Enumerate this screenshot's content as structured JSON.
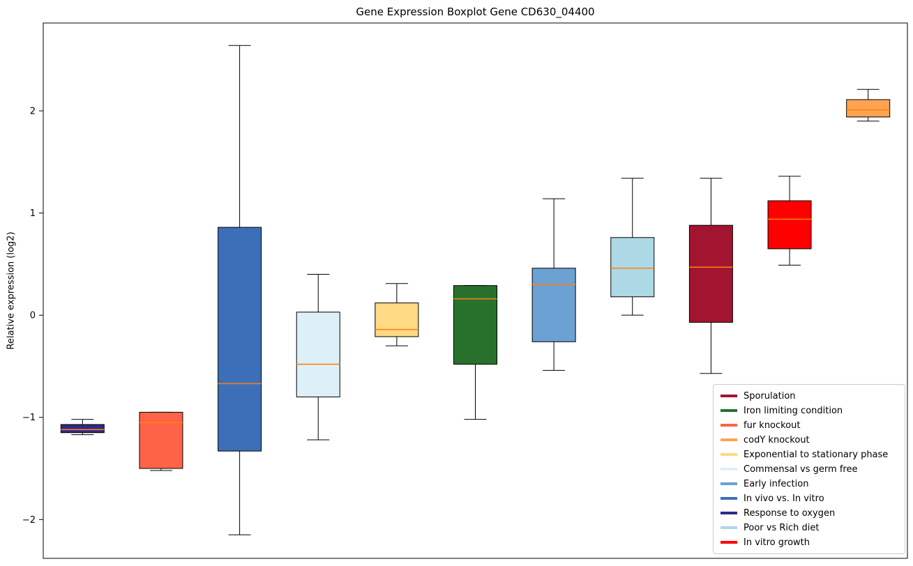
{
  "chart_data": {
    "type": "boxplot",
    "title": "Gene Expression Boxplot Gene CD630_04400",
    "ylabel": "Relative expression (log2)",
    "ylim": [
      -2.38,
      2.86
    ],
    "yticks": [
      -2,
      -1,
      0,
      1,
      2
    ],
    "grid": false,
    "median_color": "#ff7f0e",
    "box_edge_color": "#000000",
    "legend_position": "lower right",
    "boxes": [
      {
        "label": "Response to oxygen",
        "color": "#2d2b85",
        "whisker_low": -1.17,
        "q1": -1.15,
        "median": -1.12,
        "q3": -1.07,
        "whisker_high": -1.02
      },
      {
        "label": "fur knockout",
        "color": "#ff6347",
        "whisker_low": -1.52,
        "q1": -1.5,
        "median": -1.05,
        "q3": -0.95,
        "whisker_high": -0.95
      },
      {
        "label": "In vivo vs. In vitro",
        "color": "#3d6fb8",
        "whisker_low": -2.15,
        "q1": -1.33,
        "median": -0.67,
        "q3": 0.86,
        "whisker_high": 2.64
      },
      {
        "label": "Commensal vs germ free",
        "color": "#ddf0f8",
        "whisker_low": -1.22,
        "q1": -0.8,
        "median": -0.48,
        "q3": 0.03,
        "whisker_high": 0.4
      },
      {
        "label": "Exponential to stationary phase",
        "color": "#ffd983",
        "whisker_low": -0.3,
        "q1": -0.21,
        "median": -0.14,
        "q3": 0.12,
        "whisker_high": 0.31
      },
      {
        "label": "Iron limiting condition",
        "color": "#27712c",
        "whisker_low": -1.02,
        "q1": -0.48,
        "median": 0.16,
        "q3": 0.29,
        "whisker_high": 0.29
      },
      {
        "label": "Early infection",
        "color": "#6ba1d3",
        "whisker_low": -0.54,
        "q1": -0.26,
        "median": 0.3,
        "q3": 0.46,
        "whisker_high": 1.14
      },
      {
        "label": "Poor vs Rich diet",
        "color": "#add8e6",
        "whisker_low": 0.0,
        "q1": 0.18,
        "median": 0.46,
        "q3": 0.76,
        "whisker_high": 1.34
      },
      {
        "label": "Sporulation",
        "color": "#a2142f",
        "whisker_low": -0.57,
        "q1": -0.07,
        "median": 0.47,
        "q3": 0.88,
        "whisker_high": 1.34
      },
      {
        "label": "In vitro growth",
        "color": "#ff0000",
        "whisker_low": 0.49,
        "q1": 0.65,
        "median": 0.94,
        "q3": 1.12,
        "whisker_high": 1.36
      },
      {
        "label": "codY knockout",
        "color": "#ffa351",
        "whisker_low": 1.9,
        "q1": 1.94,
        "median": 2.01,
        "q3": 2.11,
        "whisker_high": 2.21
      }
    ],
    "legend": [
      {
        "label": "Sporulation",
        "color": "#a2142f"
      },
      {
        "label": "Iron limiting condition",
        "color": "#27712c"
      },
      {
        "label": "fur knockout",
        "color": "#ff6347"
      },
      {
        "label": "codY knockout",
        "color": "#ffa351"
      },
      {
        "label": "Exponential to stationary phase",
        "color": "#ffd983"
      },
      {
        "label": "Commensal vs germ free",
        "color": "#ddf0f8"
      },
      {
        "label": "Early infection",
        "color": "#6ba1d3"
      },
      {
        "label": "In vivo vs. In vitro",
        "color": "#3d6fb8"
      },
      {
        "label": "Response to oxygen",
        "color": "#2d2b85"
      },
      {
        "label": "Poor vs Rich diet",
        "color": "#add8e6"
      },
      {
        "label": "In vitro growth",
        "color": "#ff0000"
      }
    ]
  }
}
